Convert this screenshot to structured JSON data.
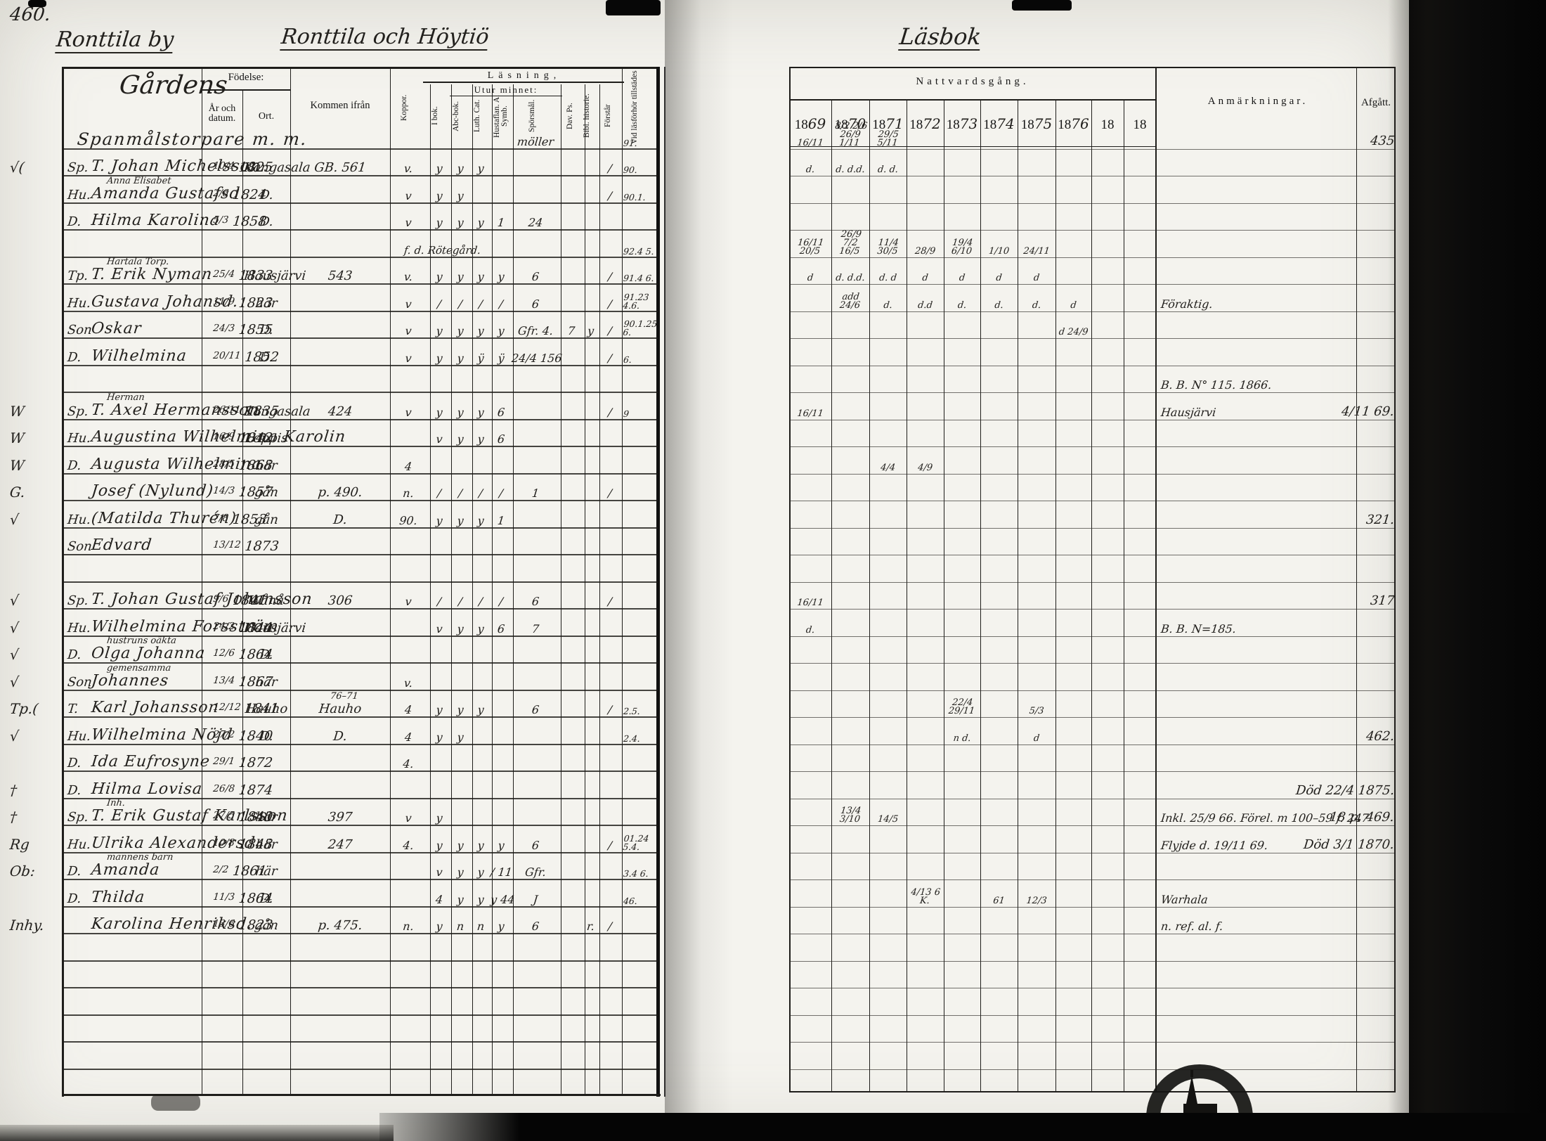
{
  "page": {
    "number": "460.",
    "village_title": "Ronttila by",
    "parish_title": "Ronttila och Höytiö",
    "right_page_title": "Läsbok"
  },
  "left_table": {
    "name_column_heading": "Gårdens",
    "fodelse": {
      "label": "Födelse:",
      "year_col": "År och datum.",
      "place_col": "Ort."
    },
    "kommen_label": "Kommen ifrån",
    "lasning_label": "Läsning,",
    "utur_label": "Utur minnet:",
    "vcols": [
      "Koppor.",
      "I bok.",
      "Abc-bok.",
      "Luth. Cat.",
      "Hustaflan. A. Symb.",
      "Spörsmål.",
      "Dav. Ps.",
      "Bibl. historie.",
      "Förstår",
      "Vid läsförhör tillstädes"
    ]
  },
  "right_table": {
    "natt_label": "Nattvardsgång.",
    "years": [
      {
        "printed": "18",
        "written": "69"
      },
      {
        "printed": "18",
        "written": "70"
      },
      {
        "printed": "18",
        "written": "71"
      },
      {
        "printed": "18",
        "written": "72"
      },
      {
        "printed": "18",
        "written": "73"
      },
      {
        "printed": "18",
        "written": "74"
      },
      {
        "printed": "18",
        "written": "75"
      },
      {
        "printed": "18",
        "written": "76"
      },
      {
        "printed": "18",
        "written": ""
      },
      {
        "printed": "18",
        "written": ""
      }
    ],
    "anm_label": "Anmärkningar.",
    "afg_label": "Afgått."
  },
  "icons": {
    "bottom_stamp": "archive-church-stamp"
  },
  "rows": [
    {
      "h": 1,
      "n": "Spanmålstorpare m. m.",
      "mk": [
        "",
        "",
        "",
        "",
        "",
        "möller",
        "",
        "",
        ""
      ],
      "t": "91.",
      "nv": [
        "16/11",
        "8/2 2/6 26/9 1/11",
        "29/5 5/11",
        "",
        "",
        "",
        "",
        "",
        "",
        ""
      ],
      "afg": "435"
    },
    {
      "m": "√(",
      "p": "Sp.",
      "n": "T. Johan Michelsson",
      "b": "10/4 1825",
      "o": "Kangasala",
      "f": "GB. 561",
      "mk": [
        "v.",
        "y",
        "y",
        "y",
        "",
        "",
        "",
        "",
        "/"
      ],
      "t": "90.",
      "nv": [
        "d.",
        "d. d.d.",
        "d. d.",
        "",
        "",
        "",
        "",
        "",
        "",
        ""
      ]
    },
    {
      "p": "Hu.",
      "a": "Anna Elisabet",
      "n": "Amanda Gustafsd.",
      "b": "2/6 1824",
      "o": "D.",
      "mk": [
        "v",
        "y",
        "y",
        "",
        "",
        "",
        "",
        "",
        "/"
      ],
      "t": "90.1."
    },
    {
      "p": "D.",
      "n": "Hilma Karolina",
      "b": "5/3 1858",
      "o": "D.",
      "mk": [
        "v",
        "y",
        "y",
        "y",
        "1",
        "24",
        "",
        "",
        ""
      ]
    },
    {
      "rn": "f. d. Rötegård.",
      "t": "92.4 5.",
      "nv": [
        "16/11 20/5",
        "26/9 7/2 16/5",
        "11/4 30/5",
        "28/9",
        "19/4 6/10",
        "1/10",
        "24/11",
        "",
        "",
        ""
      ]
    },
    {
      "a": "Hartala Torp.",
      "p": "Tp.",
      "n": "T. Erik Nyman",
      "b": "25/4 1833",
      "o": "Hausjärvi",
      "f": "543",
      "mk": [
        "v.",
        "y",
        "y",
        "y",
        "y",
        "6",
        "",
        "",
        "/"
      ],
      "t": "91.4 6.",
      "nv": [
        "d",
        "d. d.d.",
        "d. d",
        "d",
        "d",
        "d",
        "d",
        "",
        "",
        ""
      ]
    },
    {
      "p": "Hu.",
      "n": "Gustava Johansd.",
      "b": "11/9 1823",
      "o": "här",
      "mk": [
        "v",
        "/",
        "/",
        "/",
        "/",
        "6",
        "",
        "",
        "/"
      ],
      "t": "91.23 4.6.",
      "nv": [
        "",
        "add 24/6",
        "d.",
        "d.d",
        "d.",
        "d.",
        "d.",
        "d",
        "",
        ""
      ],
      "anm": "Föraktig."
    },
    {
      "p": "Son",
      "n": "Oskar",
      "b": "24/3 1855",
      "o": "D.",
      "mk": [
        "v",
        "y",
        "y",
        "y",
        "y",
        "Gfr. 4.",
        "7",
        "y",
        "/"
      ],
      "t": "90.1.25 6.",
      "nv": [
        "",
        "",
        "",
        "",
        "",
        "",
        "",
        "d 24/9",
        "",
        ""
      ]
    },
    {
      "p": "D.",
      "n": "Wilhelmina",
      "b": "20/11 1852",
      "o": "D.",
      "mk": [
        "v",
        "y",
        "y",
        "ÿ",
        "ÿ",
        "24/4 156",
        "",
        "",
        "/"
      ],
      "t": "6."
    },
    {
      "anm": "B. B. N° 115. 1866."
    },
    {
      "m": "W",
      "p": "Sp.",
      "a": "Herman",
      "n": "T. Axel Hermansson",
      "b": "26/11 1835",
      "o": "Kangasala",
      "f": "424",
      "mk": [
        "v",
        "y",
        "y",
        "y",
        "6",
        "",
        "",
        "",
        "/"
      ],
      "t": "9",
      "nv": [
        "16/11",
        "",
        "",
        "",
        "",
        "",
        "",
        "",
        "",
        ""
      ],
      "anm": "Hausjärvi",
      "afg": "4/11 69."
    },
    {
      "m": "W",
      "p": "Hu.",
      "n": "Augustina Wilhelmina Karolin",
      "b": "16/9 1842",
      "o": "Loppis",
      "mk": [
        "",
        "v",
        "y",
        "y",
        "6",
        "",
        "",
        "",
        ""
      ]
    },
    {
      "m": "W",
      "p": "D.",
      "n": "Augusta Wilhelmina",
      "b": "28/5 1868",
      "o": "här",
      "mk": [
        "4",
        "",
        "",
        "",
        "",
        "",
        "",
        "",
        ""
      ],
      "nv": [
        "",
        "",
        "4/4",
        "4/9",
        "",
        "",
        "",
        "",
        "",
        ""
      ]
    },
    {
      "m": "G.",
      "n": "Josef (Nylund)",
      "b": "14/3 1857",
      "o": "gån",
      "f": "p. 490.",
      "mk": [
        "n.",
        "/",
        "/",
        "/",
        "/",
        "1",
        "",
        "",
        "/"
      ]
    },
    {
      "m": "√",
      "p": "Hu.",
      "n": "(Matilda Thurén)",
      "b": "7/8 1853",
      "o": "gån",
      "f": "D.",
      "mk": [
        "90.",
        "y",
        "y",
        "y",
        "1",
        "",
        "",
        "",
        ""
      ],
      "afg": "321."
    },
    {
      "p": "Son",
      "n": "Edvard",
      "b": "13/12 1873"
    },
    {},
    {
      "m": "√",
      "p": "Sp.",
      "n": "T. Johan Gustaf Johansson",
      "b": "9/6 1841",
      "o": "Wånå",
      "f": "306",
      "mk": [
        "v",
        "/",
        "/",
        "/",
        "/",
        "6",
        "",
        "",
        "/"
      ],
      "nv": [
        "16/11",
        "",
        "",
        "",
        "",
        "",
        "",
        "",
        "",
        ""
      ],
      "afg": "317"
    },
    {
      "m": "√",
      "p": "Hu.",
      "n": "Wilhelmina Forsström",
      "b": "24/2 1844",
      "o": "Hausjärvi",
      "mk": [
        "",
        "v",
        "y",
        "y",
        "6",
        "7",
        "",
        "",
        ""
      ],
      "nv": [
        "d.",
        "",
        "",
        "",
        "",
        "",
        "",
        "",
        "",
        ""
      ],
      "anm": "B. B. N=185."
    },
    {
      "m": "√",
      "p": "D.",
      "a": "hustruns oäkta",
      "n": "Olga Johanna",
      "b": "12/6 1864",
      "o": "D."
    },
    {
      "m": "√",
      "p": "Son",
      "a": "gemensamma",
      "n": "Johannes",
      "b": "13/4 1867",
      "o": "här",
      "mk": [
        "v.",
        "",
        "",
        "",
        "",
        "",
        "",
        "",
        ""
      ]
    },
    {
      "m": "Tp.(",
      "p": "T.",
      "n": "Karl Johansson",
      "b": "12/12 1841",
      "o": "Hauho",
      "f": "Hauho",
      "fa": "76–71",
      "mk": [
        "4",
        "y",
        "y",
        "y",
        "",
        "6",
        "",
        "",
        "/"
      ],
      "t": "2.5.",
      "nv": [
        "",
        "",
        "",
        "",
        "22/4 29/11",
        "",
        "5/3",
        "",
        "",
        ""
      ]
    },
    {
      "m": "√",
      "p": "Hu.",
      "n": "Wilhelmina Nöjd",
      "b": "27/2 1840",
      "o": "D.",
      "f": "D.",
      "mk": [
        "4",
        "y",
        "y",
        "",
        "",
        "",
        "",
        "",
        ""
      ],
      "t": "2.4.",
      "nv": [
        "",
        "",
        "",
        "",
        "n d.",
        "",
        "d",
        "",
        "",
        ""
      ],
      "afg": "462."
    },
    {
      "p": "D.",
      "n": "Ida Eufrosyne",
      "b": "29/1 1872",
      "mk": [
        "4.",
        "",
        "",
        "",
        "",
        "",
        "",
        "",
        ""
      ]
    },
    {
      "m": "†",
      "p": "D.",
      "n": "Hilma Lovisa",
      "b": "26/8 1874",
      "afg": "Död 22/4 1875."
    },
    {
      "m": "†",
      "p": "Sp.",
      "a": "Inh.",
      "n": "T. Erik Gustaf Karlsson",
      "b": "27/5 1840",
      "o": "här",
      "f": "397",
      "mk": [
        "v",
        "y",
        "",
        "",
        "",
        "",
        "",
        "",
        ""
      ],
      "nv": [
        "",
        "13/4 3/10",
        "14/5",
        "",
        "",
        "",
        "",
        "",
        "",
        ""
      ],
      "anm": "Inkl. 25/9 66. Förel. m 100–59 f. 247",
      "afg": "18 p. 469."
    },
    {
      "m": "Rg",
      "p": "Hu.",
      "n": "Ulrika Alexandersd.",
      "b": "10/8 1848",
      "o": "här",
      "f": "247",
      "mk": [
        "4.",
        "y",
        "y",
        "y",
        "y",
        "6",
        "",
        "",
        "/"
      ],
      "t": "01.24 5.4.",
      "anm": "Flyjde d. 19/11 69.",
      "afg": "Död 3/1 1870."
    },
    {
      "m": "Ob:",
      "p": "D.",
      "a": "mannens barn",
      "n": "Amanda",
      "b": "2/2 1861",
      "o": "här",
      "mk": [
        "",
        "v",
        "y",
        "y",
        "/ 11",
        "Gfr.",
        "",
        "",
        ""
      ],
      "t": "3.4 6."
    },
    {
      "p": "D.",
      "n": "Thilda",
      "b": "11/3 1864",
      "o": "D.",
      "mk": [
        "",
        "4",
        "y",
        "y",
        "y 44",
        "J",
        "",
        "",
        ""
      ],
      "t": "46.",
      "nv": [
        "",
        "",
        "",
        "4/13 6 K.",
        "",
        "61",
        "12/3",
        "",
        "",
        ""
      ],
      "anm": "Warhala"
    },
    {
      "m": "Inhy.",
      "n": "Karolina Henriksd.",
      "b": "13/6 1823",
      "o": "gån",
      "f": "p. 475.",
      "mk": [
        "n.",
        "y",
        "n",
        "n",
        "y",
        "6",
        "",
        "r.",
        "/"
      ],
      "anm": "n. ref. al. f."
    },
    {},
    {},
    {},
    {},
    {}
  ]
}
